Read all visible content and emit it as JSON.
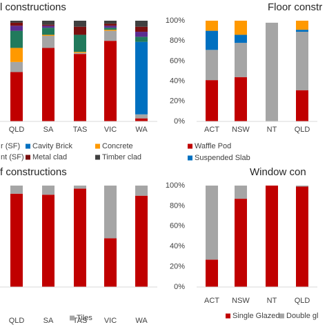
{
  "chart_data": [
    {
      "type": "bar",
      "stacked": true,
      "title": "l constructions",
      "categories": [
        "QLD",
        "SA",
        "TAS",
        "VIC",
        "WA"
      ],
      "ylim": [
        0,
        100
      ],
      "series": [
        {
          "color": "#c00000",
          "values": [
            49,
            73,
            67,
            80,
            3
          ]
        },
        {
          "color": "#a5a5a5",
          "values": [
            10,
            12,
            1,
            10,
            4
          ]
        },
        {
          "name": "Cavity Brick",
          "color": "#0070c0",
          "values": [
            0,
            0,
            0,
            0,
            72
          ]
        },
        {
          "name": "Concrete",
          "color": "#ff9900",
          "values": [
            14,
            1,
            1,
            1,
            0
          ]
        },
        {
          "name": "r (SF)",
          "color": "#217a5c",
          "values": [
            17,
            7,
            17,
            2,
            5
          ]
        },
        {
          "name": "nt (SF)",
          "color": "#5b2c91",
          "values": [
            5,
            2,
            0,
            2,
            5
          ]
        },
        {
          "name": "Metal clad",
          "color": "#7b0f0f",
          "values": [
            3,
            1,
            8,
            2,
            5
          ]
        },
        {
          "name": "Timber clad",
          "color": "#404040",
          "values": [
            2,
            4,
            6,
            3,
            6
          ]
        }
      ]
    },
    {
      "type": "bar",
      "stacked": true,
      "title": "Floor constr",
      "categories": [
        "ACT",
        "NSW",
        "NT",
        "QLD"
      ],
      "ylim": [
        0,
        100
      ],
      "yticks": [
        {
          "value": 0,
          "label": "0%"
        },
        {
          "value": 20,
          "label": "20%"
        },
        {
          "value": 40,
          "label": "40%"
        },
        {
          "value": 60,
          "label": "60%"
        },
        {
          "value": 80,
          "label": "80%"
        },
        {
          "value": 100,
          "label": "100%"
        }
      ],
      "series": [
        {
          "name": "Waffle Pod",
          "color": "#c00000",
          "values": [
            41,
            44,
            0,
            31
          ]
        },
        {
          "color": "#a5a5a5",
          "values": [
            30,
            34,
            98,
            58
          ]
        },
        {
          "name": "Suspended Slab",
          "color": "#0070c0",
          "values": [
            19,
            8,
            0,
            2
          ]
        },
        {
          "color": "#ff9900",
          "values": [
            10,
            14,
            0,
            9
          ]
        }
      ]
    },
    {
      "type": "bar",
      "stacked": true,
      "title": "f constructions",
      "categories": [
        "QLD",
        "SA",
        "TAS",
        "VIC",
        "WA"
      ],
      "ylim": [
        0,
        100
      ],
      "series": [
        {
          "color": "#c00000",
          "values": [
            92,
            91,
            97,
            48,
            90
          ]
        },
        {
          "name": "Tiles",
          "color": "#a5a5a5",
          "values": [
            8,
            9,
            3,
            52,
            10
          ]
        }
      ]
    },
    {
      "type": "bar",
      "stacked": true,
      "title": "Window con",
      "categories": [
        "ACT",
        "NSW",
        "NT",
        "QLD"
      ],
      "ylim": [
        0,
        100
      ],
      "yticks": [
        {
          "value": 0,
          "label": "0%"
        },
        {
          "value": 20,
          "label": "20%"
        },
        {
          "value": 40,
          "label": "40%"
        },
        {
          "value": 60,
          "label": "60%"
        },
        {
          "value": 80,
          "label": "80%"
        },
        {
          "value": 100,
          "label": "100%"
        }
      ],
      "series": [
        {
          "name": "Single Glazed",
          "color": "#c00000",
          "values": [
            27,
            87,
            100,
            99
          ]
        },
        {
          "name": "Double gl",
          "color": "#a5a5a5",
          "values": [
            73,
            13,
            0,
            1
          ]
        }
      ]
    }
  ]
}
